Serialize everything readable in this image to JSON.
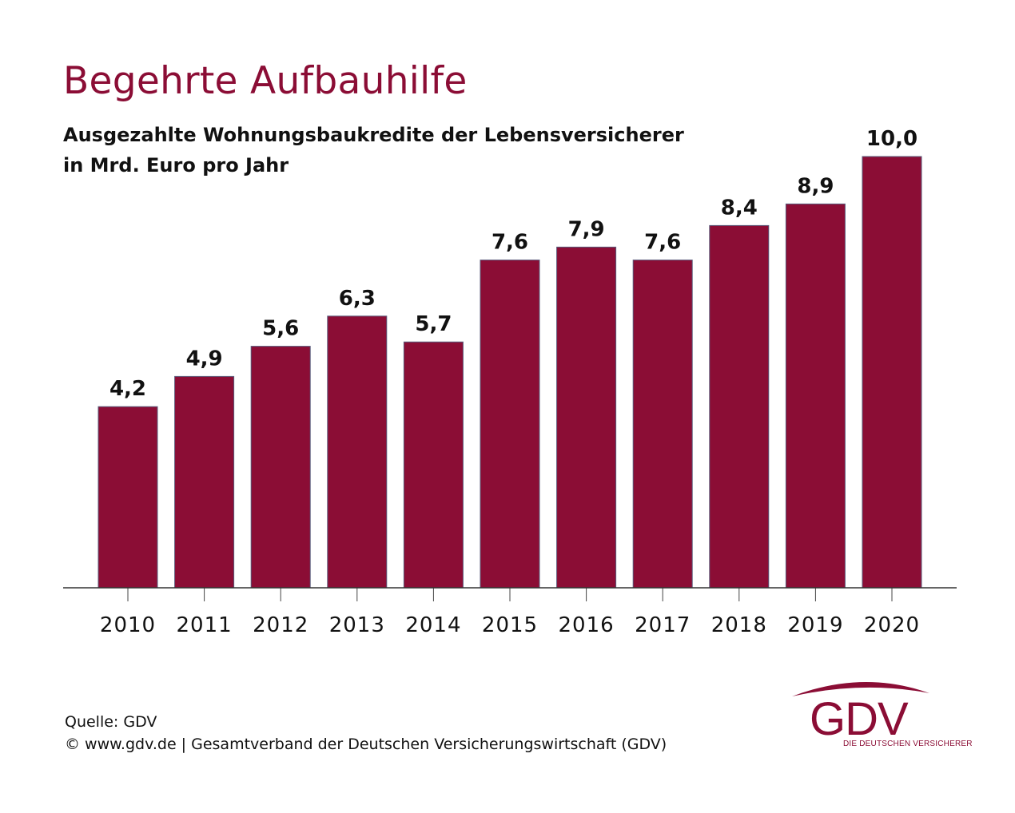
{
  "title": "Begehrte Aufbauhilfe",
  "subtitle_line1": "Ausgezahlte Wohnungsbaukredite der Lebensversicherer",
  "subtitle_line2": "in Mrd. Euro pro Jahr",
  "footer": {
    "source": "Quelle: GDV",
    "copyright": "© www.gdv.de | Gesamtverband der Deutschen Versicherungswirtschaft (GDV)"
  },
  "logo": {
    "mark": "GDV",
    "tagline": "DIE DEUTSCHEN VERSICHERER"
  },
  "colors": {
    "bar": "#8b0d35",
    "title": "#8b0d35",
    "text": "#111111"
  },
  "chart_data": {
    "type": "bar",
    "title": "Begehrte Aufbauhilfe",
    "categories": [
      "2010",
      "2011",
      "2012",
      "2013",
      "2014",
      "2015",
      "2016",
      "2017",
      "2018",
      "2019",
      "2020"
    ],
    "values": [
      4.2,
      4.9,
      5.6,
      6.3,
      5.7,
      7.6,
      7.9,
      7.6,
      8.4,
      8.9,
      10.0
    ],
    "value_labels": [
      "4,2",
      "4,9",
      "5,6",
      "6,3",
      "5,7",
      "7,6",
      "7,9",
      "7,6",
      "8,4",
      "8,9",
      "10,0"
    ],
    "ylim": [
      0,
      10
    ],
    "grid": false
  }
}
